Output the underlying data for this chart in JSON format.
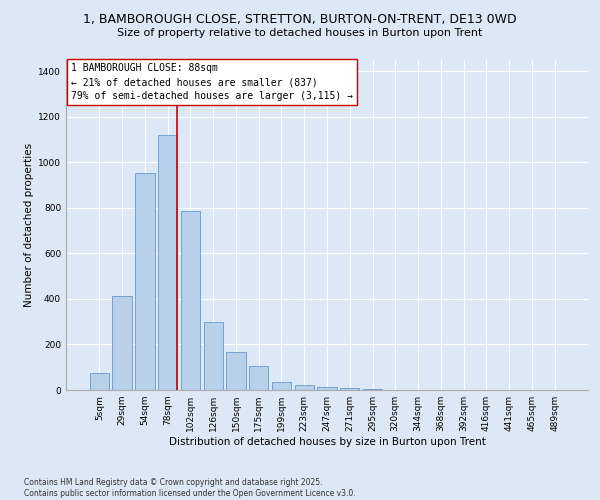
{
  "title1": "1, BAMBOROUGH CLOSE, STRETTON, BURTON-ON-TRENT, DE13 0WD",
  "title2": "Size of property relative to detached houses in Burton upon Trent",
  "xlabel": "Distribution of detached houses by size in Burton upon Trent",
  "ylabel": "Number of detached properties",
  "bar_labels": [
    "5sqm",
    "29sqm",
    "54sqm",
    "78sqm",
    "102sqm",
    "126sqm",
    "150sqm",
    "175sqm",
    "199sqm",
    "223sqm",
    "247sqm",
    "271sqm",
    "295sqm",
    "320sqm",
    "344sqm",
    "368sqm",
    "392sqm",
    "416sqm",
    "441sqm",
    "465sqm",
    "489sqm"
  ],
  "bar_values": [
    75,
    415,
    955,
    1120,
    785,
    300,
    165,
    105,
    35,
    20,
    15,
    10,
    5,
    0,
    0,
    0,
    0,
    0,
    0,
    0,
    0
  ],
  "bar_color": "#b8d0ea",
  "bar_edge_color": "#6699cc",
  "vline_x": 3.42,
  "vline_color": "#cc0000",
  "annotation_text": "1 BAMBOROUGH CLOSE: 88sqm\n← 21% of detached houses are smaller (837)\n79% of semi-detached houses are larger (3,115) →",
  "annotation_box_color": "#ffffff",
  "annotation_box_edge": "#cc0000",
  "ylim": [
    0,
    1450
  ],
  "yticks": [
    0,
    200,
    400,
    600,
    800,
    1000,
    1200,
    1400
  ],
  "bg_color": "#dce8f5",
  "plot_bg_color": "#dce8f5",
  "footer": "Contains HM Land Registry data © Crown copyright and database right 2025.\nContains public sector information licensed under the Open Government Licence v3.0.",
  "title_fontsize": 9,
  "subtitle_fontsize": 8,
  "axis_label_fontsize": 7.5,
  "tick_fontsize": 6.5,
  "footer_fontsize": 5.5,
  "annot_fontsize": 7
}
